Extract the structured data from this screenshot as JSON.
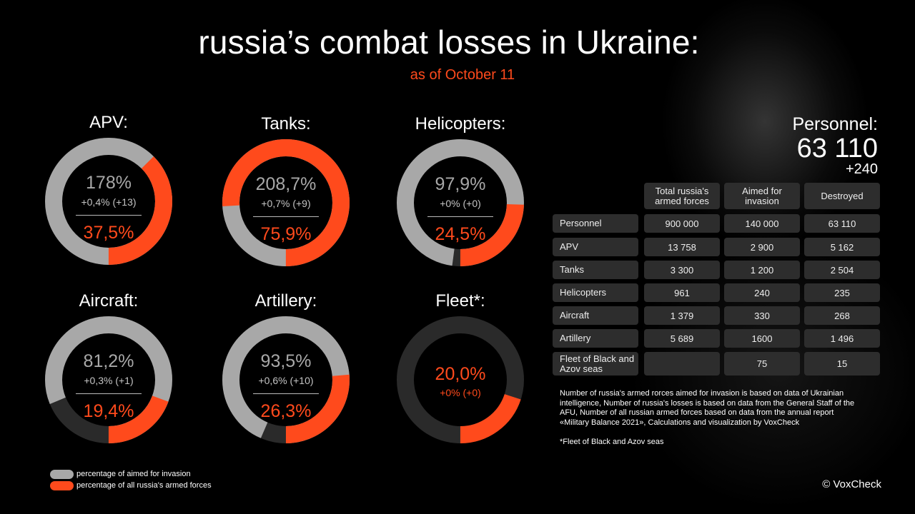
{
  "header": {
    "title": "russia’s combat losses in Ukraine:",
    "date": "as of October 11"
  },
  "colors": {
    "aimed": "#a8a8a8",
    "all": "#ff4a1c",
    "track": "#2a2a2a"
  },
  "chart_data": {
    "type": "donut",
    "series": [
      {
        "name": "APV:",
        "aimed_pct_label": "178%",
        "change": "+0,4% (+13)",
        "all_pct_label": "37,5%",
        "aimed_fill": 1.0,
        "all_fill": 0.375
      },
      {
        "name": "Tanks:",
        "aimed_pct_label": "208,7%",
        "change": "+0,7% (+9)",
        "all_pct_label": "75,9%",
        "aimed_fill": 1.0,
        "all_fill": 0.759
      },
      {
        "name": "Helicopters:",
        "aimed_pct_label": "97,9%",
        "change": "+0% (+0)",
        "all_pct_label": "24,5%",
        "aimed_fill": 0.979,
        "all_fill": 0.245
      },
      {
        "name": "Aircraft:",
        "aimed_pct_label": "81,2%",
        "change": "+0,3% (+1)",
        "all_pct_label": "19,4%",
        "aimed_fill": 0.812,
        "all_fill": 0.194
      },
      {
        "name": "Artillery:",
        "aimed_pct_label": "93,5%",
        "change": "+0,6% (+10)",
        "all_pct_label": "26,3%",
        "aimed_fill": 0.935,
        "all_fill": 0.263
      },
      {
        "name": "Fleet*:",
        "aimed_pct_label": "",
        "change": "+0% (+0)",
        "all_pct_label": "20,0%",
        "aimed_fill": 0,
        "all_fill": 0.2
      }
    ],
    "legend": [
      {
        "label": "percentage of aimed for invasion",
        "color": "#a8a8a8"
      },
      {
        "label": "percentage of all russia's armed forces",
        "color": "#ff4a1c"
      }
    ]
  },
  "personnel": {
    "label": "Personnel:",
    "value": "63 110",
    "delta": "+240"
  },
  "table": {
    "headers": [
      "Total russia's armed forces",
      "Aimed for invasion",
      "Destroyed"
    ],
    "rows": [
      {
        "label": "Personnel",
        "total": "900 000",
        "aimed": "140 000",
        "destroyed": "63 110"
      },
      {
        "label": "APV",
        "total": "13 758",
        "aimed": "2 900",
        "destroyed": "5 162"
      },
      {
        "label": "Tanks",
        "total": "3 300",
        "aimed": "1 200",
        "destroyed": "2 504"
      },
      {
        "label": "Helicopters",
        "total": "961",
        "aimed": "240",
        "destroyed": "235"
      },
      {
        "label": "Aircraft",
        "total": "1 379",
        "aimed": "330",
        "destroyed": "268"
      },
      {
        "label": "Artillery",
        "total": "5 689",
        "aimed": "1600",
        "destroyed": "1 496"
      },
      {
        "label": "Fleet of Black and Azov seas",
        "total": "",
        "aimed": "75",
        "destroyed": "15"
      }
    ]
  },
  "notes": {
    "source": "Number of russia's armed rorces aimed for invasion  is based on data of Ukrainian intelligence, Number of russia's losses is based on data from the General Staff of the AFU, Number of all russian armed forces based on  data from the annual report «Military Balance 2021», Calculations and visualization by VoxCheck",
    "fleet": "*Fleet of Black and Azov seas"
  },
  "copyright": "© VoxCheck"
}
